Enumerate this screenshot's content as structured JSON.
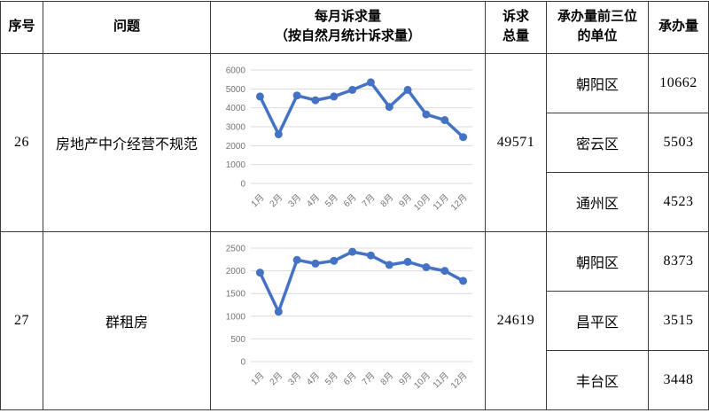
{
  "header": {
    "serial": "序号",
    "problem": "问题",
    "monthly_line1": "每月诉求量",
    "monthly_line2": "（按自然月统计诉求量）",
    "total_line1": "诉求",
    "total_line2": "总量",
    "units_line1": "承办量前三位",
    "units_line2": "的单位",
    "volume": "承办量"
  },
  "rows": [
    {
      "serial": "26",
      "problem": "房地产中介经营不规范",
      "total": "49571",
      "units": [
        {
          "name": "朝阳区",
          "volume": "10662"
        },
        {
          "name": "密云区",
          "volume": "5503"
        },
        {
          "name": "通州区",
          "volume": "4523"
        }
      ]
    },
    {
      "serial": "27",
      "problem": "群租房",
      "total": "24619",
      "units": [
        {
          "name": "朝阳区",
          "volume": "8373"
        },
        {
          "name": "昌平区",
          "volume": "3515"
        },
        {
          "name": "丰台区",
          "volume": "3448"
        }
      ]
    }
  ],
  "chart_data": [
    {
      "type": "line",
      "row": "26",
      "title": "",
      "categories": [
        "1月",
        "2月",
        "3月",
        "4月",
        "5月",
        "6月",
        "7月",
        "8月",
        "9月",
        "10月",
        "11月",
        "12月"
      ],
      "values": [
        4600,
        2600,
        4650,
        4400,
        4600,
        4950,
        5350,
        4050,
        4950,
        3650,
        3350,
        2450
      ],
      "xlabel": "",
      "ylabel": "",
      "ylim": [
        0,
        6000
      ],
      "ytick_step": 1000,
      "grid": true,
      "legend": false,
      "line_color": "#4472C4"
    },
    {
      "type": "line",
      "row": "27",
      "title": "",
      "categories": [
        "1月",
        "2月",
        "3月",
        "4月",
        "5月",
        "6月",
        "7月",
        "8月",
        "9月",
        "10月",
        "11月",
        "12月"
      ],
      "values": [
        1960,
        1100,
        2240,
        2160,
        2220,
        2420,
        2340,
        2130,
        2200,
        2080,
        2000,
        1780
      ],
      "xlabel": "",
      "ylabel": "",
      "ylim": [
        0,
        2500
      ],
      "ytick_step": 500,
      "grid": true,
      "legend": false,
      "line_color": "#4472C4"
    }
  ],
  "colors": {
    "line": "#4472C4",
    "grid": "#d9d9d9",
    "axis_text": "#757575",
    "border": "#3a3a3a",
    "text": "#000000",
    "background": "#ffffff"
  }
}
